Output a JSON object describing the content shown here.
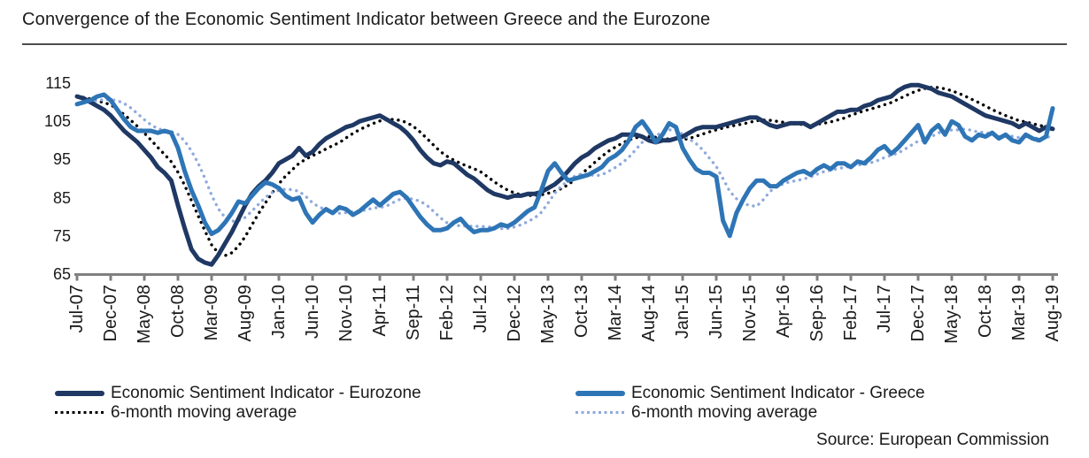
{
  "page": {
    "title": "Convergence of the Economic Sentiment Indicator between Greece and the Eurozone",
    "source": "Source: European Commission"
  },
  "colors": {
    "eurozone": "#1F3864",
    "greece": "#2E75B6",
    "eurozone_ma": "#000000",
    "greece_ma": "#8FAADC",
    "axis": "#808080",
    "text": "#1a1a1a",
    "title_rule": "#4d4d4d"
  },
  "legend": [
    {
      "label": "Economic Sentiment Indicator - Eurozone",
      "color": "#1F3864",
      "style": "solid"
    },
    {
      "label": "6-month moving average",
      "color": "#000000",
      "style": "dotted"
    },
    {
      "label": "Economic Sentiment Indicator - Greece",
      "color": "#2E75B6",
      "style": "solid"
    },
    {
      "label": "6-month moving average",
      "color": "#8FAADC",
      "style": "dotted"
    }
  ],
  "chart_data": {
    "type": "line",
    "title": "Convergence of the Economic Sentiment Indicator between Greece and the Eurozone",
    "xlabel": "",
    "ylabel": "",
    "ylim": [
      65,
      115
    ],
    "y_ticks": [
      65,
      75,
      85,
      95,
      105,
      115
    ],
    "grid": false,
    "legend_position": "bottom",
    "x_start": "Jul-07",
    "x_end": "Aug-19",
    "x_frequency": "monthly",
    "x_label_rotation": -90,
    "months_per_tick": 5,
    "x_tick_labels": [
      "Jul-07",
      "Dec-07",
      "May-08",
      "Oct-08",
      "Mar-09",
      "Aug-09",
      "Jan-10",
      "Jun-10",
      "Nov-10",
      "Apr-11",
      "Sep-11",
      "Feb-12",
      "Jul-12",
      "Dec-12",
      "May-13",
      "Oct-13",
      "Mar-14",
      "Aug-14",
      "Jan-15",
      "Jun-15",
      "Nov-15",
      "Apr-16",
      "Sep-16",
      "Feb-17",
      "Jul-17",
      "Dec-17",
      "May-18",
      "Oct-18",
      "Mar-19",
      "Aug-19"
    ],
    "moving_average_window": 6,
    "series": [
      {
        "name": "Economic Sentiment Indicator - Eurozone",
        "color": "#1F3864",
        "style": "solid",
        "values": [
          111.5,
          111,
          110,
          109,
          108,
          106.5,
          104.5,
          102.5,
          101,
          99.5,
          97.5,
          95.5,
          93,
          91.5,
          89.5,
          83,
          77,
          71.5,
          69,
          68,
          67.5,
          70,
          73,
          76,
          79.5,
          83,
          86,
          88,
          89.5,
          91.5,
          94,
          95,
          96,
          98,
          96,
          97,
          99,
          100.5,
          101.5,
          102.5,
          103.5,
          104,
          105,
          105.5,
          106,
          106.5,
          105.5,
          104.5,
          103.5,
          102,
          100,
          97.5,
          95.5,
          94,
          93.5,
          94.5,
          94,
          92.5,
          91,
          90,
          88.5,
          87,
          86,
          85.5,
          85,
          85.5,
          85.5,
          86,
          86,
          86.5,
          87.5,
          88.5,
          90,
          92,
          94,
          95.5,
          96.5,
          98,
          99,
          100,
          100.5,
          101.5,
          101.5,
          101.5,
          101,
          100,
          99.5,
          100,
          100,
          100.5,
          101,
          102,
          103,
          103.5,
          103.5,
          103.5,
          104,
          104.5,
          105,
          105.5,
          106,
          106,
          105,
          104,
          103.5,
          104,
          104.5,
          104.5,
          104.5,
          103.5,
          104.5,
          105.5,
          106.5,
          107.5,
          107.5,
          108,
          108,
          109,
          109.5,
          110.5,
          111,
          111.5,
          113,
          114,
          114.5,
          114.5,
          114,
          113.5,
          112.5,
          112,
          111.5,
          110.5,
          109.5,
          108.5,
          107.5,
          106.5,
          106,
          105.5,
          105,
          104.5,
          103.5,
          104.5,
          103.5,
          102.5,
          103.5,
          103
        ]
      },
      {
        "name": "Economic Sentiment Indicator - Greece",
        "color": "#2E75B6",
        "style": "solid",
        "values": [
          109.5,
          110,
          110.5,
          111.5,
          112,
          110.5,
          108,
          105.5,
          103.5,
          102.5,
          102.5,
          102.5,
          102,
          102.5,
          102,
          98,
          92,
          87,
          83,
          78.5,
          75.5,
          76.5,
          78.5,
          81,
          84,
          83.5,
          85.5,
          87.5,
          89,
          88.5,
          87.5,
          85.5,
          84.5,
          85,
          81,
          78.5,
          80.5,
          82,
          81,
          82.5,
          82,
          80.5,
          81.5,
          83,
          84.5,
          83,
          84.5,
          86,
          86.5,
          85,
          82.5,
          80,
          78,
          76.5,
          76.5,
          77,
          78.5,
          79.5,
          77.5,
          76,
          76.5,
          76.5,
          77,
          78,
          77.5,
          78.5,
          80,
          81.5,
          82.5,
          87,
          92,
          94,
          91.5,
          89.5,
          90,
          90.5,
          91,
          92,
          93,
          95,
          96,
          97.5,
          100,
          103.5,
          105,
          102.5,
          99.5,
          101.5,
          104.5,
          103.5,
          98,
          95,
          92.5,
          91.5,
          91.5,
          90.5,
          79,
          75,
          81,
          84.5,
          87.5,
          89.5,
          89.5,
          88,
          88,
          89.5,
          90.5,
          91.5,
          92,
          91,
          92.5,
          93.5,
          92.5,
          94,
          94,
          93,
          94.5,
          94,
          95.5,
          97.5,
          98.5,
          96.5,
          98,
          100,
          102,
          104,
          99.5,
          102.5,
          104,
          101.5,
          105,
          104,
          101,
          100,
          101.5,
          101,
          102,
          100.5,
          101.5,
          100,
          99.5,
          101.5,
          100.5,
          100,
          101,
          108.4
        ]
      },
      {
        "name": "6-month moving average (Eurozone)",
        "color": "#000000",
        "style": "dotted",
        "derived_from": 0
      },
      {
        "name": "6-month moving average (Greece)",
        "color": "#8FAADC",
        "style": "dotted",
        "derived_from": 1
      }
    ]
  }
}
